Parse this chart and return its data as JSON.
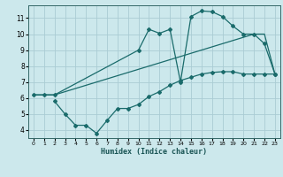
{
  "xlabel": "Humidex (Indice chaleur)",
  "bg_color": "#cce8ec",
  "grid_color": "#aaccd4",
  "line_color": "#1a6b6b",
  "line1_x": [
    0,
    1,
    2,
    10,
    11,
    12,
    13,
    14,
    15,
    16,
    17,
    18,
    19,
    20,
    21,
    22,
    23
  ],
  "line1_y": [
    6.2,
    6.2,
    6.2,
    9.0,
    10.3,
    10.05,
    10.3,
    7.0,
    11.1,
    11.45,
    11.4,
    11.1,
    10.5,
    10.0,
    10.0,
    9.4,
    7.5
  ],
  "line2_x": [
    0,
    1,
    2,
    21,
    22,
    23
  ],
  "line2_y": [
    6.2,
    6.2,
    6.2,
    10.0,
    10.0,
    7.5
  ],
  "line3_x": [
    2,
    3,
    4,
    5,
    6,
    7,
    8,
    9,
    10,
    11,
    12,
    13,
    14,
    15,
    16,
    17,
    18,
    19,
    20,
    21,
    22,
    23
  ],
  "line3_y": [
    5.8,
    5.0,
    4.3,
    4.3,
    3.8,
    4.6,
    5.35,
    5.35,
    5.6,
    6.1,
    6.4,
    6.8,
    7.1,
    7.3,
    7.5,
    7.6,
    7.65,
    7.65,
    7.5,
    7.5,
    7.5,
    7.5
  ],
  "xlim": [
    -0.5,
    23.5
  ],
  "ylim": [
    3.5,
    11.8
  ],
  "xticks": [
    0,
    1,
    2,
    3,
    4,
    5,
    6,
    7,
    8,
    9,
    10,
    11,
    12,
    13,
    14,
    15,
    16,
    17,
    18,
    19,
    20,
    21,
    22,
    23
  ],
  "yticks": [
    4,
    5,
    6,
    7,
    8,
    9,
    10,
    11
  ]
}
